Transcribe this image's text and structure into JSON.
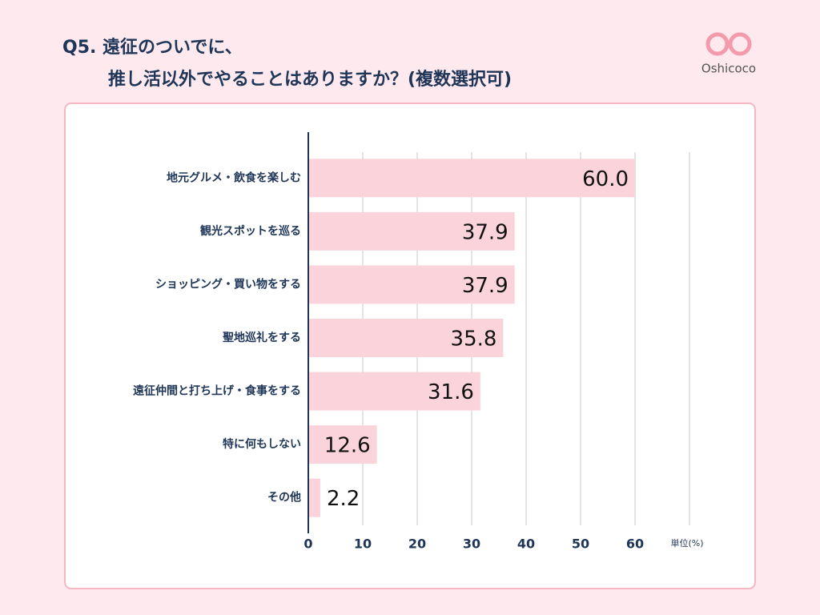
{
  "chart_data": {
    "type": "barh",
    "title": "Q5. 遠征のついでに、",
    "subtitle": "推し活以外でやることはありますか？(複数選択可)",
    "brand": "Oshicoco",
    "unit_label": "単位(%)",
    "categories": [
      "地元グルメ・飲食を楽しむ",
      "観光スポットを巡る",
      "ショッピング・買い物をする",
      "聖地巡礼をする",
      "遠征仲間と打ち上げ・食事をする",
      "特に何もしない",
      "その他"
    ],
    "values": [
      60.0,
      37.9,
      37.9,
      35.8,
      31.6,
      12.6,
      2.2
    ],
    "value_labels": [
      "60.0",
      "37.9",
      "37.9",
      "35.8",
      "31.6",
      "12.6",
      "2.2"
    ],
    "color": "#fbd4db",
    "xlim": [
      0,
      70
    ],
    "xticks": [
      0,
      10,
      20,
      30,
      40,
      50,
      60
    ],
    "grid": true
  }
}
